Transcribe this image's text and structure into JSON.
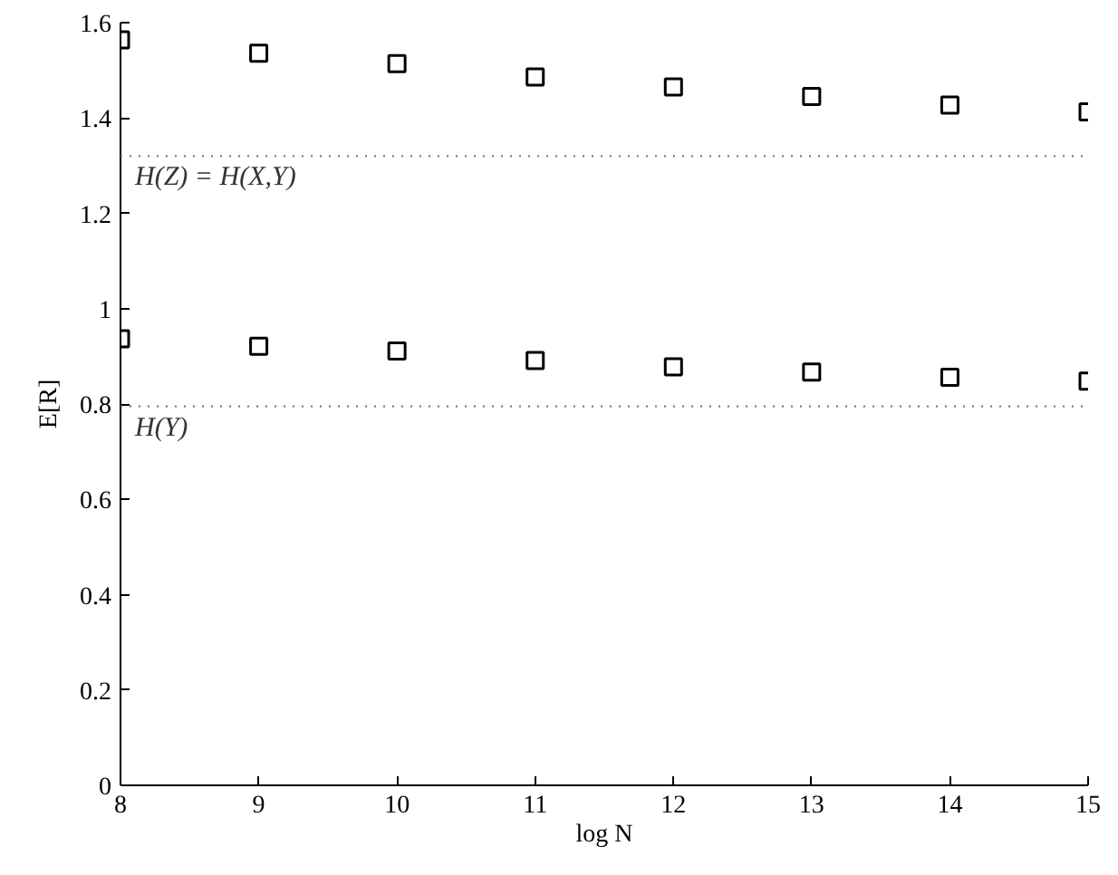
{
  "chart_data": {
    "type": "scatter",
    "xlabel": "log N",
    "ylabel": "E[R]",
    "x": [
      8,
      9,
      10,
      11,
      12,
      13,
      14,
      15
    ],
    "series": [
      {
        "color": "#000000",
        "values": [
          1.564,
          1.536,
          1.514,
          1.486,
          1.465,
          1.445,
          1.427,
          1.413
        ]
      },
      {
        "color": "#000000",
        "values": [
          0.937,
          0.921,
          0.911,
          0.891,
          0.878,
          0.867,
          0.856,
          0.848
        ]
      }
    ],
    "xlim": [
      8,
      15
    ],
    "ylim": [
      0,
      1.6
    ],
    "xticks": [
      8,
      9,
      10,
      11,
      12,
      13,
      14,
      15
    ],
    "yticks": [
      0,
      0.2,
      0.4,
      0.6,
      0.8,
      1,
      1.2,
      1.4,
      1.6
    ],
    "marker": "square",
    "grid": false,
    "ref_lines": [
      {
        "axis": "y",
        "value": 1.32,
        "label": "H(Z) = H(X,Y)",
        "color": "#808080",
        "line_style": "dotted"
      },
      {
        "axis": "y",
        "value": 0.795,
        "label": "H(Y)",
        "color": "#808080",
        "line_style": "dotted"
      }
    ]
  }
}
